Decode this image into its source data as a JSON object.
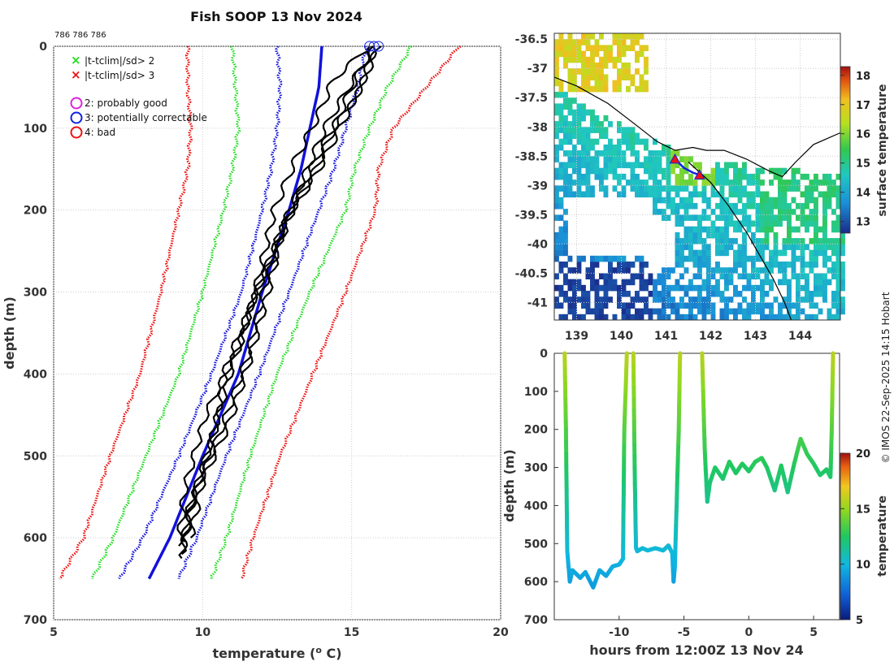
{
  "title": "Fish SOOP 13 Nov 2024",
  "profile_ids": "786 786 786",
  "credit": "© IMOS 22-Sep-2025 14:15 Hobart",
  "legend": {
    "sd2": "|t-tclim|/sd> 2",
    "sd3": "|t-tclim|/sd> 3",
    "qc2": "2: probably good",
    "qc3": "3: potentially correctable",
    "qc4": "4: bad"
  },
  "colors": {
    "sd2": "#22dd22",
    "sd3": "#ee1111",
    "clim": "#1111dd",
    "qc2": "#dd22dd",
    "qc3": "#1122dd",
    "qc4": "#ee1111",
    "profile": "#000000"
  },
  "chart_data": [
    {
      "type": "line",
      "name": "temperature-profiles",
      "xlabel": "temperature (° C)",
      "xlabel_parts": [
        "temperature (",
        "o",
        " C)"
      ],
      "ylabel": "depth (m)",
      "xlim": [
        5,
        20
      ],
      "ylim": [
        700,
        0
      ],
      "xticks": [
        5,
        10,
        15,
        20
      ],
      "yticks": [
        0,
        100,
        200,
        300,
        400,
        500,
        600,
        700
      ],
      "grid": true,
      "series": [
        {
          "name": "clim -3sd",
          "style": "dotted",
          "color": "#ee1111",
          "temp": [
            9.5,
            9.5,
            9.6,
            9.5,
            9.2,
            8.6,
            7.9,
            6.9,
            6.0,
            5.2
          ],
          "depth": [
            0,
            50,
            100,
            150,
            200,
            300,
            400,
            500,
            600,
            650
          ]
        },
        {
          "name": "clim -2sd",
          "style": "dotted",
          "color": "#22dd22",
          "temp": [
            11.0,
            11.1,
            11.2,
            11.0,
            10.7,
            10.0,
            9.2,
            8.1,
            7.0,
            6.3
          ],
          "depth": [
            0,
            50,
            100,
            150,
            200,
            300,
            400,
            500,
            600,
            650
          ]
        },
        {
          "name": "clim -1sd",
          "style": "dotted",
          "color": "#1111dd",
          "temp": [
            12.5,
            12.6,
            12.5,
            12.3,
            12.0,
            11.3,
            10.3,
            9.2,
            8.0,
            7.2
          ],
          "depth": [
            0,
            50,
            100,
            150,
            200,
            300,
            400,
            500,
            600,
            650
          ]
        },
        {
          "name": "climatology mean",
          "style": "solid",
          "color": "#1111dd",
          "temp": [
            14.0,
            13.9,
            13.6,
            13.3,
            12.9,
            12.0,
            11.2,
            10.0,
            8.9,
            8.2
          ],
          "depth": [
            0,
            50,
            100,
            150,
            200,
            300,
            400,
            500,
            600,
            650
          ]
        },
        {
          "name": "clim +1sd",
          "style": "dotted",
          "color": "#1111dd",
          "temp": [
            15.5,
            15.2,
            14.8,
            14.4,
            13.9,
            12.9,
            11.9,
            10.8,
            9.8,
            9.2
          ],
          "depth": [
            0,
            50,
            100,
            150,
            200,
            300,
            400,
            500,
            600,
            650
          ]
        },
        {
          "name": "clim +2sd",
          "style": "dotted",
          "color": "#22dd22",
          "temp": [
            17.0,
            16.2,
            15.6,
            15.1,
            14.8,
            13.6,
            12.5,
            11.6,
            10.8,
            10.3
          ],
          "depth": [
            0,
            50,
            100,
            150,
            200,
            300,
            400,
            500,
            600,
            650
          ]
        },
        {
          "name": "clim +3sd",
          "style": "dotted",
          "color": "#ee1111",
          "temp": [
            18.6,
            17.5,
            16.4,
            15.9,
            15.8,
            14.8,
            13.7,
            12.6,
            11.7,
            11.3
          ],
          "depth": [
            0,
            50,
            100,
            150,
            200,
            300,
            400,
            500,
            600,
            650
          ]
        },
        {
          "name": "profile 1",
          "style": "solid",
          "color": "#000000",
          "temp": [
            15.7,
            15.0,
            14.4,
            13.8,
            13.0,
            12.1,
            11.5,
            10.6,
            9.6,
            9.3
          ],
          "depth": [
            0,
            50,
            100,
            150,
            200,
            290,
            380,
            470,
            560,
            620
          ]
        },
        {
          "name": "profile 2",
          "style": "solid",
          "color": "#000000",
          "temp": [
            15.8,
            15.2,
            14.2,
            13.5,
            12.8,
            11.8,
            11.0,
            10.3,
            9.5,
            9.3
          ],
          "depth": [
            0,
            60,
            110,
            160,
            210,
            300,
            390,
            480,
            570,
            625
          ]
        },
        {
          "name": "profile 3",
          "style": "solid",
          "color": "#000000",
          "temp": [
            15.6,
            14.4,
            13.8,
            13.1,
            12.4,
            11.9,
            11.3,
            10.1,
            9.4,
            9.2
          ],
          "depth": [
            0,
            40,
            90,
            140,
            200,
            280,
            360,
            450,
            540,
            610
          ]
        },
        {
          "name": "profile 4",
          "style": "solid",
          "color": "#000000",
          "temp": [
            15.9,
            15.3,
            14.6,
            13.9,
            12.7,
            12.2,
            11.6,
            10.9,
            10.0,
            9.6
          ],
          "depth": [
            0,
            50,
            100,
            150,
            220,
            300,
            380,
            460,
            530,
            600
          ]
        },
        {
          "name": "profile 5",
          "style": "solid",
          "color": "#000000",
          "temp": [
            15.8,
            14.9,
            14.1,
            13.4,
            12.6,
            11.7,
            10.8,
            10.4,
            9.7,
            9.4
          ],
          "depth": [
            0,
            50,
            100,
            160,
            230,
            310,
            390,
            470,
            550,
            605
          ]
        }
      ],
      "flags": [
        {
          "type": "qc3-circle",
          "temp": 15.6,
          "depth": 0
        },
        {
          "type": "qc3-circle",
          "temp": 15.75,
          "depth": 0
        },
        {
          "type": "qc3-circle",
          "temp": 15.9,
          "depth": 0
        }
      ]
    },
    {
      "type": "heatmap",
      "name": "sst-map",
      "xlim": [
        138.5,
        144.9
      ],
      "ylim": [
        -41.3,
        -36.4
      ],
      "xticks": [
        139,
        140,
        141,
        142,
        143,
        144
      ],
      "yticks": [
        -36.5,
        -37,
        -37.5,
        -38,
        -38.5,
        -39,
        -39.5,
        -40,
        -40.5,
        -41
      ],
      "colorbar_label": "surface temperature",
      "colorbar_ticks": [
        13,
        14,
        15,
        16,
        17,
        18
      ],
      "colorbar_range": [
        12.6,
        18.3
      ],
      "stations": [
        {
          "lon": 141.2,
          "lat": -38.55
        },
        {
          "lon": 141.75,
          "lat": -38.82
        }
      ]
    },
    {
      "type": "line",
      "name": "depth-time",
      "xlabel": "hours from 12:00Z 13 Nov 24",
      "ylabel": "depth (m)",
      "xlim": [
        -15,
        7
      ],
      "ylim": [
        700,
        0
      ],
      "xticks": [
        -10,
        -5,
        0,
        5
      ],
      "yticks": [
        0,
        100,
        200,
        300,
        400,
        500,
        600,
        700
      ],
      "colorbar_label": "temperature",
      "colorbar_ticks": [
        5,
        10,
        15,
        20
      ],
      "colorbar_range": [
        5,
        20
      ],
      "series": [
        {
          "name": "descent 1",
          "hours": [
            -14.2,
            -14.1,
            -14.0,
            -13.8,
            -13.6,
            -13.0,
            -12.6,
            -12.0,
            -11.5,
            -11.0,
            -10.5,
            -10.0,
            -9.7,
            -9.6,
            -9.4
          ],
          "depth": [
            0,
            200,
            520,
            600,
            570,
            590,
            575,
            615,
            570,
            585,
            560,
            555,
            540,
            200,
            0
          ]
        },
        {
          "name": "descent 2",
          "hours": [
            -8.9,
            -8.8,
            -8.7,
            -8.6,
            -8.2,
            -7.8,
            -7.2,
            -6.6,
            -6.2,
            -5.9,
            -5.8,
            -5.7,
            -5.4,
            -5.3
          ],
          "depth": [
            0,
            300,
            510,
            520,
            512,
            518,
            512,
            518,
            505,
            525,
            600,
            560,
            200,
            0
          ]
        },
        {
          "name": "descent 3",
          "hours": [
            -3.6,
            -3.4,
            -3.2,
            -3.0,
            -2.6,
            -2.0,
            -1.5,
            -1.0,
            -0.5,
            0.0,
            0.5,
            1.0,
            1.4,
            2.0,
            2.5,
            3.0,
            3.5,
            4.0,
            4.5,
            5.0,
            5.5,
            6.0,
            6.3,
            6.4,
            6.5
          ],
          "depth": [
            0,
            250,
            390,
            340,
            300,
            330,
            285,
            315,
            290,
            310,
            285,
            275,
            300,
            360,
            295,
            365,
            290,
            225,
            265,
            290,
            320,
            305,
            325,
            200,
            0
          ]
        }
      ]
    }
  ]
}
